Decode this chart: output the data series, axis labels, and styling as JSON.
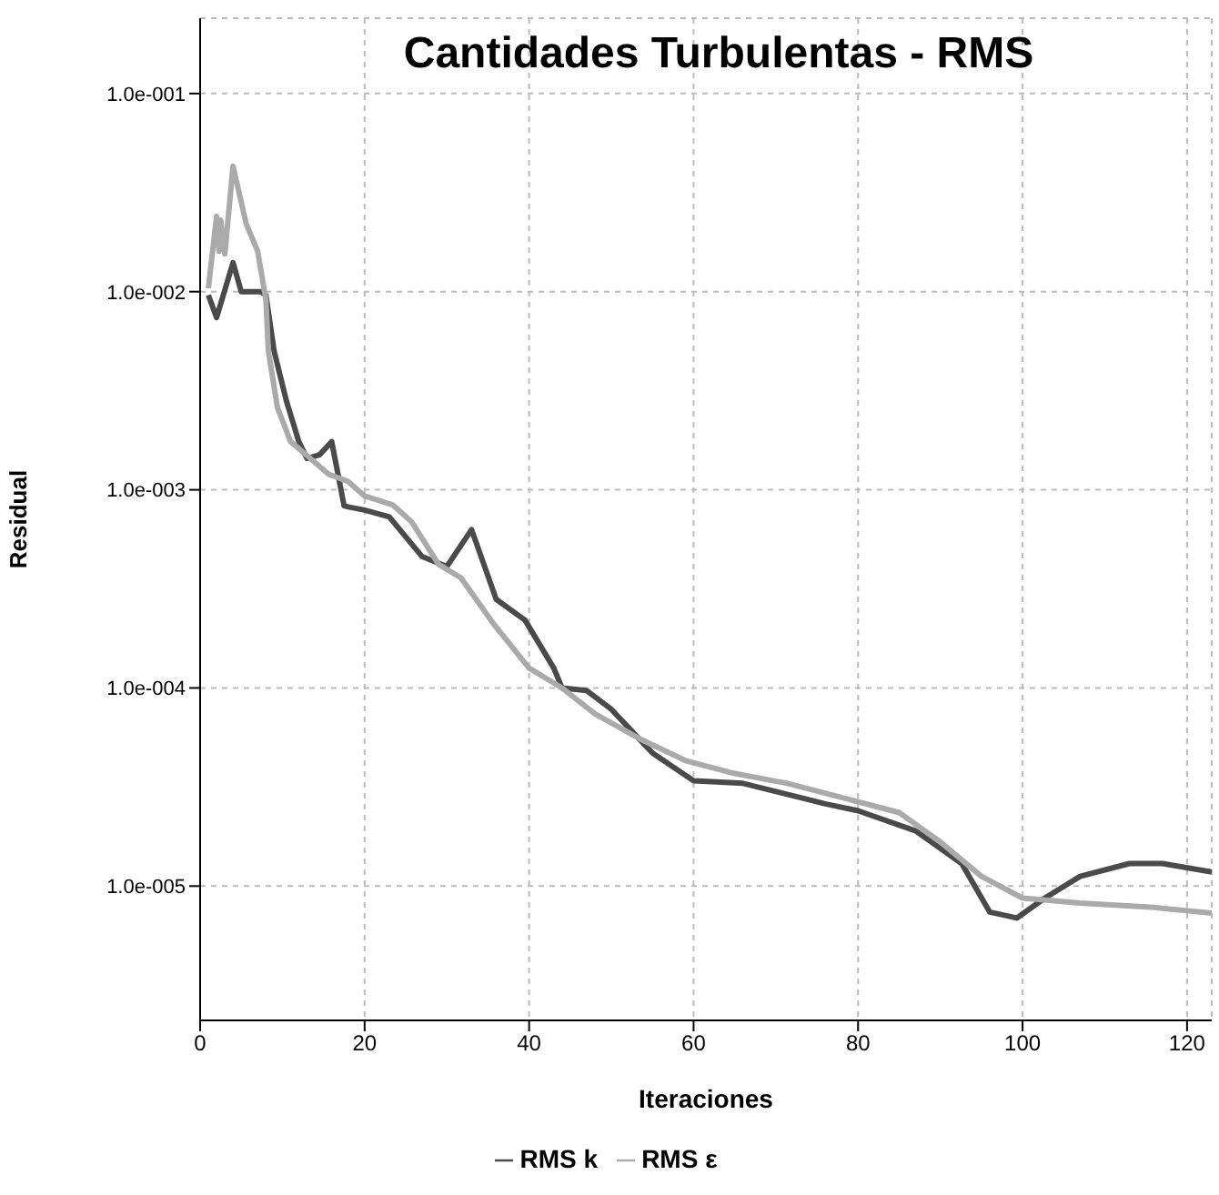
{
  "chart_data": {
    "type": "line",
    "title": "Cantidades Turbulentas - RMS",
    "xlabel": "Iteraciones",
    "ylabel": "Residual",
    "log": "y",
    "grid": true,
    "legend": "bottom",
    "marker": "none",
    "line_style": "solid",
    "xlim": [
      0,
      123
    ],
    "xticks": [
      0,
      20,
      40,
      60,
      80,
      100,
      120
    ],
    "ylim": [
      2.1e-06,
      0.24
    ],
    "yticks": [
      {
        "value": 0.1,
        "label": "1.0e-001"
      },
      {
        "value": 0.01,
        "label": "1.0e-002"
      },
      {
        "value": 0.001,
        "label": "1.0e-003"
      },
      {
        "value": 0.0001,
        "label": "1.0e-004"
      },
      {
        "value": 1e-05,
        "label": "1.0e-005"
      }
    ],
    "series": [
      {
        "name": "RMS k",
        "color": "#4a4a4a",
        "x": [
          1,
          2,
          4,
          5,
          7.4,
          8,
          9,
          10.5,
          12,
          13,
          14.5,
          16,
          17.5,
          18,
          20,
          23,
          27,
          30,
          33,
          36,
          39.5,
          43,
          44,
          47,
          50,
          55,
          60,
          66,
          73.7,
          76,
          80,
          87,
          92.6,
          96,
          99.3,
          102.7,
          107,
          113,
          117,
          123
        ],
        "values": [
          0.0096,
          0.0074,
          0.014,
          0.01,
          0.01,
          0.0096,
          0.005,
          0.0028,
          0.00175,
          0.00144,
          0.0015,
          0.00175,
          0.00083,
          0.00082,
          0.00079,
          0.00073,
          0.00046,
          0.00041,
          0.00063,
          0.00028,
          0.00022,
          0.000126,
          0.0001,
          9.7e-05,
          7.8e-05,
          4.7e-05,
          3.4e-05,
          3.3e-05,
          2.75e-05,
          2.6e-05,
          2.4e-05,
          1.9e-05,
          1.3e-05,
          7.4e-06,
          6.9e-06,
          8.7e-06,
          1.12e-05,
          1.3e-05,
          1.3e-05,
          1.18e-05
        ]
      },
      {
        "name": "RMS ε",
        "color": "#aaaaaa",
        "x": [
          1,
          2,
          2.3,
          2.5,
          3,
          4,
          5.6,
          7,
          8,
          8.3,
          9.4,
          11,
          13.4,
          15.6,
          18,
          20,
          23.4,
          25.7,
          29,
          31.7,
          35.7,
          40,
          44,
          48,
          53.6,
          59,
          65,
          71.4,
          78,
          85,
          90,
          95,
          100,
          107,
          116,
          123
        ],
        "values": [
          0.0104,
          0.024,
          0.016,
          0.023,
          0.0155,
          0.043,
          0.022,
          0.016,
          0.0091,
          0.005,
          0.0026,
          0.00175,
          0.00144,
          0.0012,
          0.0011,
          0.00093,
          0.00084,
          0.00069,
          0.00042,
          0.00036,
          0.00021,
          0.000126,
          0.0001,
          7.4e-05,
          5.5e-05,
          4.3e-05,
          3.7e-05,
          3.3e-05,
          2.8e-05,
          2.35e-05,
          1.67e-05,
          1.12e-05,
          8.7e-06,
          8.2e-06,
          7.8e-06,
          7.3e-06
        ]
      }
    ]
  }
}
